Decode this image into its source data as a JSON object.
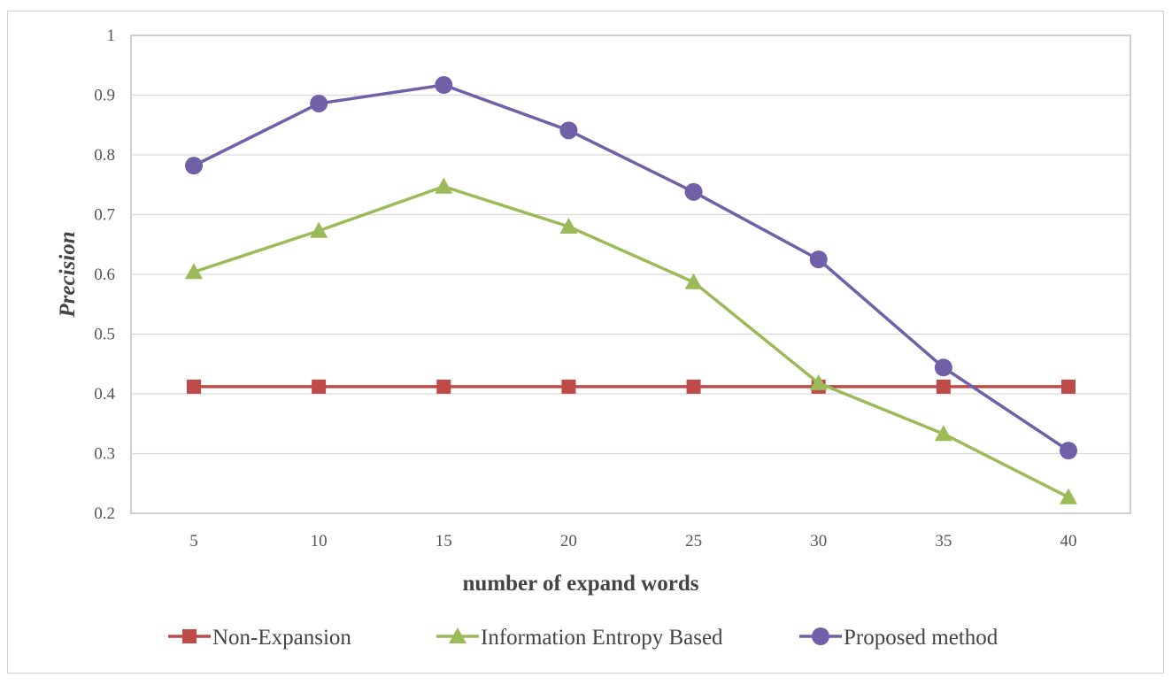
{
  "chart_data": {
    "type": "line",
    "title": "",
    "xlabel": "number of expand words",
    "ylabel": "Precision",
    "x": [
      5,
      10,
      15,
      20,
      25,
      30,
      35,
      40
    ],
    "x_tick_labels": [
      "5",
      "10",
      "15",
      "20",
      "25",
      "30",
      "35",
      "40"
    ],
    "y_tick_labels": [
      "0.2",
      "0.3",
      "0.4",
      "0.5",
      "0.6",
      "0.7",
      "0.8",
      "0.9",
      "1"
    ],
    "ylim": [
      0.2,
      1.0
    ],
    "grid": "horizontal",
    "legend_position": "bottom",
    "series": [
      {
        "name": "Non-Expansion",
        "marker": "square",
        "color": "#be4b48",
        "values": [
          0.412,
          0.412,
          0.412,
          0.412,
          0.412,
          0.412,
          0.412,
          0.412
        ]
      },
      {
        "name": "Information Entropy Based",
        "marker": "triangle",
        "color": "#9bbb59",
        "values": [
          0.604,
          0.673,
          0.747,
          0.68,
          0.587,
          0.418,
          0.333,
          0.227
        ]
      },
      {
        "name": "Proposed method",
        "marker": "circle",
        "color": "#7060a8",
        "values": [
          0.782,
          0.886,
          0.917,
          0.841,
          0.738,
          0.625,
          0.444,
          0.305
        ]
      }
    ]
  }
}
